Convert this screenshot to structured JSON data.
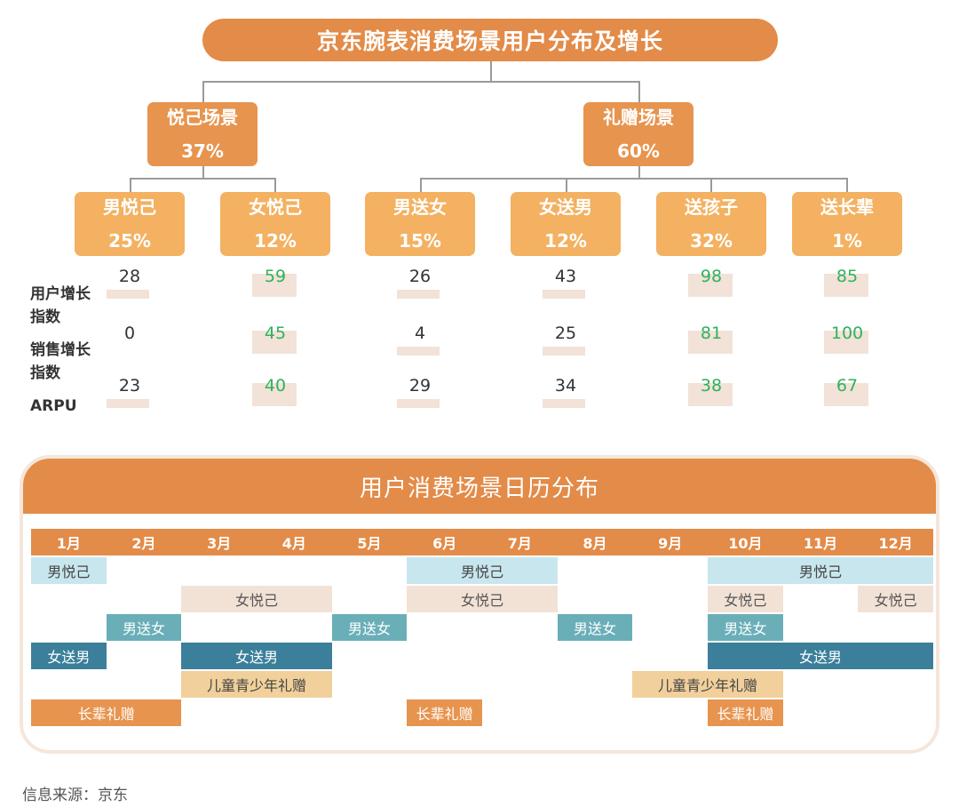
{
  "title": "京东腕表消费场景用户分布及增长",
  "tree": {
    "level1": [
      {
        "name": "悦己场景",
        "pct": "37%"
      },
      {
        "name": "礼赠场景",
        "pct": "60%"
      }
    ],
    "level2": [
      {
        "name": "男悦己",
        "pct": "25%"
      },
      {
        "name": "女悦己",
        "pct": "12%"
      },
      {
        "name": "男送女",
        "pct": "15%"
      },
      {
        "name": "女送男",
        "pct": "12%"
      },
      {
        "name": "送孩子",
        "pct": "32%"
      },
      {
        "name": "送长辈",
        "pct": "1%"
      }
    ]
  },
  "metrics": {
    "labels": [
      "用户增长\n指数",
      "销售增长\n指数",
      "ARPU"
    ],
    "user_growth": [
      28,
      59,
      26,
      43,
      98,
      85
    ],
    "sales_growth": [
      0,
      45,
      4,
      25,
      81,
      100
    ],
    "arpu": [
      23,
      40,
      29,
      34,
      38,
      67
    ]
  },
  "calendar": {
    "title": "用户消费场景日历分布",
    "months": [
      "1月",
      "2月",
      "3月",
      "4月",
      "5月",
      "6月",
      "7月",
      "8月",
      "9月",
      "10月",
      "11月",
      "12月"
    ],
    "bars": [
      {
        "label": "男悦己",
        "start": 1,
        "end": 1,
        "row": 0,
        "scene": "male_self"
      },
      {
        "label": "男悦己",
        "start": 6,
        "end": 7,
        "row": 0,
        "scene": "male_self"
      },
      {
        "label": "男悦己",
        "start": 10,
        "end": 12,
        "row": 0,
        "scene": "male_self"
      },
      {
        "label": "女悦己",
        "start": 3,
        "end": 4,
        "row": 1,
        "scene": "female_self"
      },
      {
        "label": "女悦己",
        "start": 6,
        "end": 7,
        "row": 1,
        "scene": "female_self"
      },
      {
        "label": "女悦己",
        "start": 10,
        "end": 10,
        "row": 1,
        "scene": "female_self"
      },
      {
        "label": "女悦己",
        "start": 12,
        "end": 12,
        "row": 1,
        "scene": "female_self"
      },
      {
        "label": "男送女",
        "start": 2,
        "end": 2,
        "row": 2,
        "scene": "male_to_female"
      },
      {
        "label": "男送女",
        "start": 5,
        "end": 5,
        "row": 2,
        "scene": "male_to_female"
      },
      {
        "label": "男送女",
        "start": 8,
        "end": 8,
        "row": 2,
        "scene": "male_to_female"
      },
      {
        "label": "男送女",
        "start": 10,
        "end": 10,
        "row": 2,
        "scene": "male_to_female"
      },
      {
        "label": "女送男",
        "start": 1,
        "end": 1,
        "row": 3,
        "scene": "female_to_male"
      },
      {
        "label": "女送男",
        "start": 3,
        "end": 4,
        "row": 3,
        "scene": "female_to_male"
      },
      {
        "label": "女送男",
        "start": 10,
        "end": 12,
        "row": 3,
        "scene": "female_to_male"
      },
      {
        "label": "儿童青少年礼赠",
        "start": 3,
        "end": 4,
        "row": 4,
        "scene": "kids"
      },
      {
        "label": "儿童青少年礼赠",
        "start": 9,
        "end": 10,
        "row": 4,
        "scene": "kids"
      },
      {
        "label": "长辈礼赠",
        "start": 1,
        "end": 2,
        "row": 5,
        "scene": "elders"
      },
      {
        "label": "长辈礼赠",
        "start": 6,
        "end": 6,
        "row": 5,
        "scene": "elders"
      },
      {
        "label": "长辈礼赠",
        "start": 10,
        "end": 10,
        "row": 5,
        "scene": "elders"
      }
    ]
  },
  "colors": {
    "primary_orange": "#e38b48",
    "node_orange": "#f3b161",
    "green_value": "#2db35d",
    "male_self": "#c8e6ee",
    "female_self": "#f2e2d6",
    "male_to_female": "#6aaeb8",
    "female_to_male": "#3b7f9a",
    "kids": "#f1d09b",
    "elders": "#e7944f"
  },
  "source": "信息来源：京东"
}
